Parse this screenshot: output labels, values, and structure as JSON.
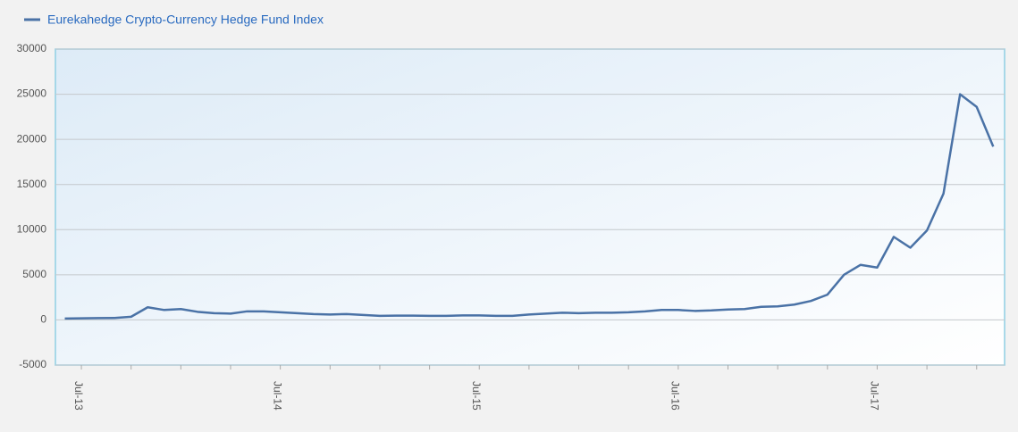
{
  "chart_data": {
    "type": "line",
    "categories": [
      null,
      "Jul-13",
      null,
      null,
      null,
      null,
      null,
      null,
      null,
      null,
      null,
      null,
      null,
      "Jul-14",
      null,
      null,
      null,
      null,
      null,
      null,
      null,
      null,
      null,
      null,
      null,
      "Jul-15",
      null,
      null,
      null,
      null,
      null,
      null,
      null,
      null,
      null,
      null,
      null,
      "Jul-16",
      null,
      null,
      null,
      null,
      null,
      null,
      null,
      null,
      null,
      null,
      null,
      "Jul-17",
      null,
      null,
      null,
      null,
      null,
      null,
      null
    ],
    "series": [
      {
        "name": "Eurekahedge Crypto-Currency Hedge Fund Index",
        "color": "#4a72a6",
        "values": [
          150,
          180,
          200,
          220,
          350,
          1400,
          1100,
          1200,
          900,
          750,
          700,
          950,
          950,
          850,
          750,
          650,
          600,
          650,
          550,
          450,
          480,
          470,
          450,
          450,
          500,
          500,
          450,
          450,
          600,
          700,
          800,
          750,
          800,
          800,
          850,
          950,
          1100,
          1100,
          1000,
          1050,
          1150,
          1200,
          1450,
          1500,
          1700,
          2100,
          2800,
          5000,
          6100,
          5800,
          9200,
          8000,
          9900,
          14000,
          25000,
          23600,
          19200
        ]
      }
    ],
    "ylim": [
      -5000,
      30000
    ],
    "yticks": [
      -5000,
      0,
      5000,
      10000,
      15000,
      20000,
      25000,
      30000
    ],
    "grid": true,
    "legend": "top-left"
  }
}
